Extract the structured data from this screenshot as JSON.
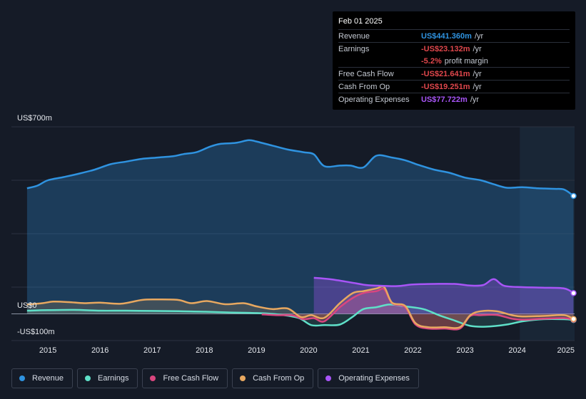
{
  "tooltip": {
    "date": "Feb 01 2025",
    "rows": [
      {
        "label": "Revenue",
        "value": "US$441.360m",
        "unit": "/yr",
        "color": "#2f93e0"
      },
      {
        "label": "Earnings",
        "value": "-US$23.132m",
        "unit": "/yr",
        "color": "#e0474c"
      },
      {
        "label": "",
        "value": "-5.2%",
        "unit": "profit margin",
        "color": "#e0474c"
      },
      {
        "label": "Free Cash Flow",
        "value": "-US$21.641m",
        "unit": "/yr",
        "color": "#e0474c"
      },
      {
        "label": "Cash From Op",
        "value": "-US$19.251m",
        "unit": "/yr",
        "color": "#e0474c"
      },
      {
        "label": "Operating Expenses",
        "value": "US$77.722m",
        "unit": "/yr",
        "color": "#a855f7"
      }
    ]
  },
  "axis": {
    "y_top": "US$700m",
    "y_zero": "US$0",
    "y_bottom": "-US$100m"
  },
  "legend": [
    {
      "label": "Revenue",
      "color": "#2f93e0"
    },
    {
      "label": "Earnings",
      "color": "#5fe0c8"
    },
    {
      "label": "Free Cash Flow",
      "color": "#d9467f"
    },
    {
      "label": "Cash From Op",
      "color": "#e8a860"
    },
    {
      "label": "Operating Expenses",
      "color": "#a855f7"
    }
  ],
  "chart_data": {
    "type": "area",
    "title": "",
    "xlabel": "",
    "ylabel": "",
    "ylim": [
      -100,
      700
    ],
    "xlim": [
      2014.3,
      2025.1
    ],
    "x_ticks": [
      "2015",
      "2016",
      "2017",
      "2018",
      "2019",
      "2020",
      "2021",
      "2022",
      "2023",
      "2024",
      "2025"
    ],
    "highlight_from": 2024.05,
    "series": [
      {
        "name": "Revenue",
        "color": "#2f93e0",
        "x": [
          2014.6,
          2014.8,
          2015.0,
          2015.3,
          2015.6,
          2015.9,
          2016.2,
          2016.5,
          2016.8,
          2017.1,
          2017.4,
          2017.6,
          2017.85,
          2018.1,
          2018.3,
          2018.6,
          2018.85,
          2019.0,
          2019.3,
          2019.6,
          2019.9,
          2020.1,
          2020.3,
          2020.6,
          2020.8,
          2021.05,
          2021.3,
          2021.6,
          2021.85,
          2022.1,
          2022.4,
          2022.7,
          2023.0,
          2023.3,
          2023.55,
          2023.8,
          2024.1,
          2024.4,
          2024.7,
          2024.9,
          2025.08
        ],
        "y": [
          470,
          480,
          500,
          512,
          525,
          540,
          560,
          570,
          580,
          585,
          590,
          598,
          605,
          625,
          636,
          640,
          650,
          645,
          630,
          615,
          605,
          597,
          553,
          555,
          555,
          548,
          592,
          585,
          575,
          558,
          540,
          528,
          510,
          500,
          485,
          472,
          474,
          470,
          468,
          465,
          441.36
        ]
      },
      {
        "name": "Earnings",
        "color": "#5fe0c8",
        "x": [
          2014.6,
          2015.0,
          2015.5,
          2016.0,
          2016.5,
          2017.0,
          2017.5,
          2018.0,
          2018.5,
          2019.0,
          2019.4,
          2019.8,
          2020.05,
          2020.3,
          2020.6,
          2020.85,
          2021.05,
          2021.3,
          2021.55,
          2021.85,
          2022.2,
          2022.5,
          2022.8,
          2023.1,
          2023.4,
          2023.8,
          2024.1,
          2024.5,
          2024.9,
          2025.08
        ],
        "y": [
          12,
          14,
          15,
          12,
          12,
          11,
          10,
          8,
          5,
          3,
          -2,
          -15,
          -42,
          -42,
          -40,
          -10,
          18,
          25,
          35,
          28,
          18,
          -5,
          -25,
          -45,
          -48,
          -40,
          -28,
          -20,
          -20,
          -23.132
        ]
      },
      {
        "name": "Free Cash Flow",
        "color": "#d9467f",
        "x": [
          2019.1,
          2019.4,
          2019.7,
          2019.9,
          2020.1,
          2020.3,
          2020.6,
          2020.85,
          2021.05,
          2021.3,
          2021.45,
          2021.6,
          2021.85,
          2022.05,
          2022.3,
          2022.6,
          2022.9,
          2023.1,
          2023.3,
          2023.6,
          2023.9,
          2024.1,
          2024.5,
          2024.9,
          2025.08
        ],
        "y": [
          -2,
          -5,
          -6,
          -20,
          -16,
          -28,
          25,
          60,
          78,
          85,
          92,
          40,
          25,
          -40,
          -55,
          -55,
          -55,
          -8,
          -5,
          -4,
          -18,
          -22,
          -18,
          -16,
          -21.641
        ]
      },
      {
        "name": "Cash From Op",
        "color": "#e8a860",
        "x": [
          2014.6,
          2014.9,
          2015.1,
          2015.4,
          2015.7,
          2016.0,
          2016.4,
          2016.8,
          2017.1,
          2017.5,
          2017.75,
          2018.05,
          2018.4,
          2018.75,
          2019.0,
          2019.3,
          2019.6,
          2019.85,
          2020.05,
          2020.3,
          2020.6,
          2020.85,
          2021.05,
          2021.3,
          2021.45,
          2021.6,
          2021.85,
          2022.05,
          2022.3,
          2022.6,
          2022.9,
          2023.1,
          2023.3,
          2023.6,
          2023.9,
          2024.1,
          2024.5,
          2024.9,
          2025.08
        ],
        "y": [
          35,
          40,
          46,
          44,
          40,
          42,
          38,
          52,
          54,
          52,
          40,
          48,
          36,
          40,
          28,
          18,
          20,
          -12,
          -5,
          -15,
          40,
          78,
          85,
          95,
          100,
          42,
          30,
          -35,
          -50,
          -50,
          -50,
          -5,
          10,
          10,
          -5,
          -10,
          -8,
          -5,
          -19.251
        ]
      },
      {
        "name": "Operating Expenses",
        "color": "#a855f7",
        "x": [
          2020.1,
          2020.4,
          2020.8,
          2021.1,
          2021.4,
          2021.7,
          2022.0,
          2022.4,
          2022.8,
          2023.1,
          2023.35,
          2023.55,
          2023.75,
          2024.1,
          2024.5,
          2024.9,
          2025.08
        ],
        "y": [
          135,
          130,
          118,
          108,
          105,
          104,
          110,
          112,
          112,
          106,
          108,
          130,
          105,
          100,
          98,
          95,
          77.722
        ]
      }
    ]
  }
}
